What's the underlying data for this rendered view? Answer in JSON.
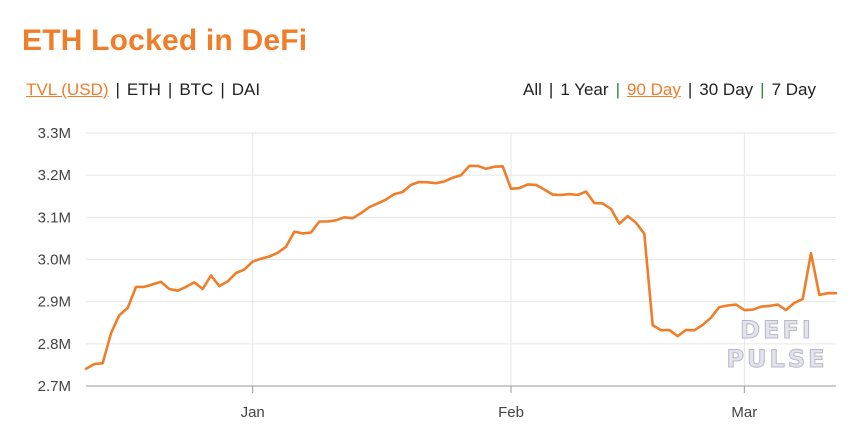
{
  "title": "ETH Locked in DeFi",
  "metric_tabs": [
    {
      "label": "TVL (USD)",
      "active": true
    },
    {
      "label": "ETH",
      "active": false
    },
    {
      "label": "BTC",
      "active": false
    },
    {
      "label": "DAI",
      "active": false
    }
  ],
  "range_tabs": [
    {
      "label": "All",
      "active": false
    },
    {
      "label": "1 Year",
      "active": false
    },
    {
      "label": "90 Day",
      "active": true
    },
    {
      "label": "30 Day",
      "active": false
    },
    {
      "label": "7 Day",
      "active": false
    }
  ],
  "watermark": [
    "DEFI",
    "PULSE"
  ],
  "colors": {
    "accent": "#ef7d29",
    "grid": "#e6e6e6",
    "separator_green": "#2a8a3a"
  },
  "chart_data": {
    "type": "line",
    "title": "ETH Locked in DeFi",
    "xlabel": "",
    "ylabel": "",
    "ylim": [
      2700000,
      3300000
    ],
    "yticks": [
      2700000,
      2800000,
      2900000,
      3000000,
      3100000,
      3200000,
      3300000
    ],
    "ytick_labels": [
      "2.7M",
      "2.8M",
      "2.9M",
      "3.0M",
      "3.1M",
      "3.2M",
      "3.3M"
    ],
    "x_start": "2017-12-12",
    "x_end": "2018-03-12",
    "xticks": [
      {
        "date": "2018-01-01",
        "label": "Jan"
      },
      {
        "date": "2018-02-01",
        "label": "Feb"
      },
      {
        "date": "2018-03-01",
        "label": "Mar"
      }
    ],
    "grid": true,
    "series": [
      {
        "color": "#ef7d29",
        "x": [
          "2017-12-12",
          "2017-12-13",
          "2017-12-14",
          "2017-12-15",
          "2017-12-16",
          "2017-12-17",
          "2017-12-18",
          "2017-12-19",
          "2017-12-20",
          "2017-12-21",
          "2017-12-22",
          "2017-12-23",
          "2017-12-24",
          "2017-12-25",
          "2017-12-26",
          "2017-12-27",
          "2017-12-28",
          "2017-12-29",
          "2017-12-30",
          "2017-12-31",
          "2018-01-01",
          "2018-01-02",
          "2018-01-03",
          "2018-01-04",
          "2018-01-05",
          "2018-01-06",
          "2018-01-07",
          "2018-01-08",
          "2018-01-09",
          "2018-01-10",
          "2018-01-11",
          "2018-01-12",
          "2018-01-13",
          "2018-01-14",
          "2018-01-15",
          "2018-01-16",
          "2018-01-17",
          "2018-01-18",
          "2018-01-19",
          "2018-01-20",
          "2018-01-21",
          "2018-01-22",
          "2018-01-23",
          "2018-01-24",
          "2018-01-25",
          "2018-01-26",
          "2018-01-27",
          "2018-01-28",
          "2018-01-29",
          "2018-01-30",
          "2018-01-31",
          "2018-02-01",
          "2018-02-02",
          "2018-02-03",
          "2018-02-04",
          "2018-02-05",
          "2018-02-06",
          "2018-02-07",
          "2018-02-08",
          "2018-02-09",
          "2018-02-10",
          "2018-02-11",
          "2018-02-12",
          "2018-02-13",
          "2018-02-14",
          "2018-02-15",
          "2018-02-16",
          "2018-02-17",
          "2018-02-18",
          "2018-02-19",
          "2018-02-20",
          "2018-02-21",
          "2018-02-22",
          "2018-02-23",
          "2018-02-24",
          "2018-02-25",
          "2018-02-26",
          "2018-02-27",
          "2018-02-28",
          "2018-03-01",
          "2018-03-02",
          "2018-03-03",
          "2018-03-04",
          "2018-03-05",
          "2018-03-06",
          "2018-03-07",
          "2018-03-08",
          "2018-03-09",
          "2018-03-10",
          "2018-03-11",
          "2018-03-12"
        ],
        "values": [
          2741000,
          2752000,
          2754000,
          2825000,
          2868000,
          2885000,
          2935000,
          2935000,
          2941000,
          2947000,
          2930000,
          2926000,
          2935000,
          2946000,
          2930000,
          2962000,
          2937000,
          2948000,
          2968000,
          2976000,
          2995000,
          3002000,
          3007000,
          3016000,
          3030000,
          3066000,
          3062000,
          3064000,
          3090000,
          3090000,
          3093000,
          3100000,
          3098000,
          3110000,
          3124000,
          3133000,
          3142000,
          3155000,
          3160000,
          3177000,
          3184000,
          3183000,
          3181000,
          3185000,
          3194000,
          3200000,
          3222000,
          3222000,
          3215000,
          3220000,
          3221000,
          3168000,
          3169000,
          3178000,
          3177000,
          3166000,
          3154000,
          3153000,
          3155000,
          3153000,
          3161000,
          3134000,
          3133000,
          3120000,
          3085000,
          3103000,
          3087000,
          3061000,
          2844000,
          2832000,
          2833000,
          2818000,
          2833000,
          2832000,
          2845000,
          2862000,
          2887000,
          2891000,
          2893000,
          2880000,
          2881000,
          2888000,
          2890000,
          2893000,
          2880000,
          2897000,
          2906000,
          3015000,
          2916000,
          2920000,
          2920000
        ]
      }
    ]
  }
}
